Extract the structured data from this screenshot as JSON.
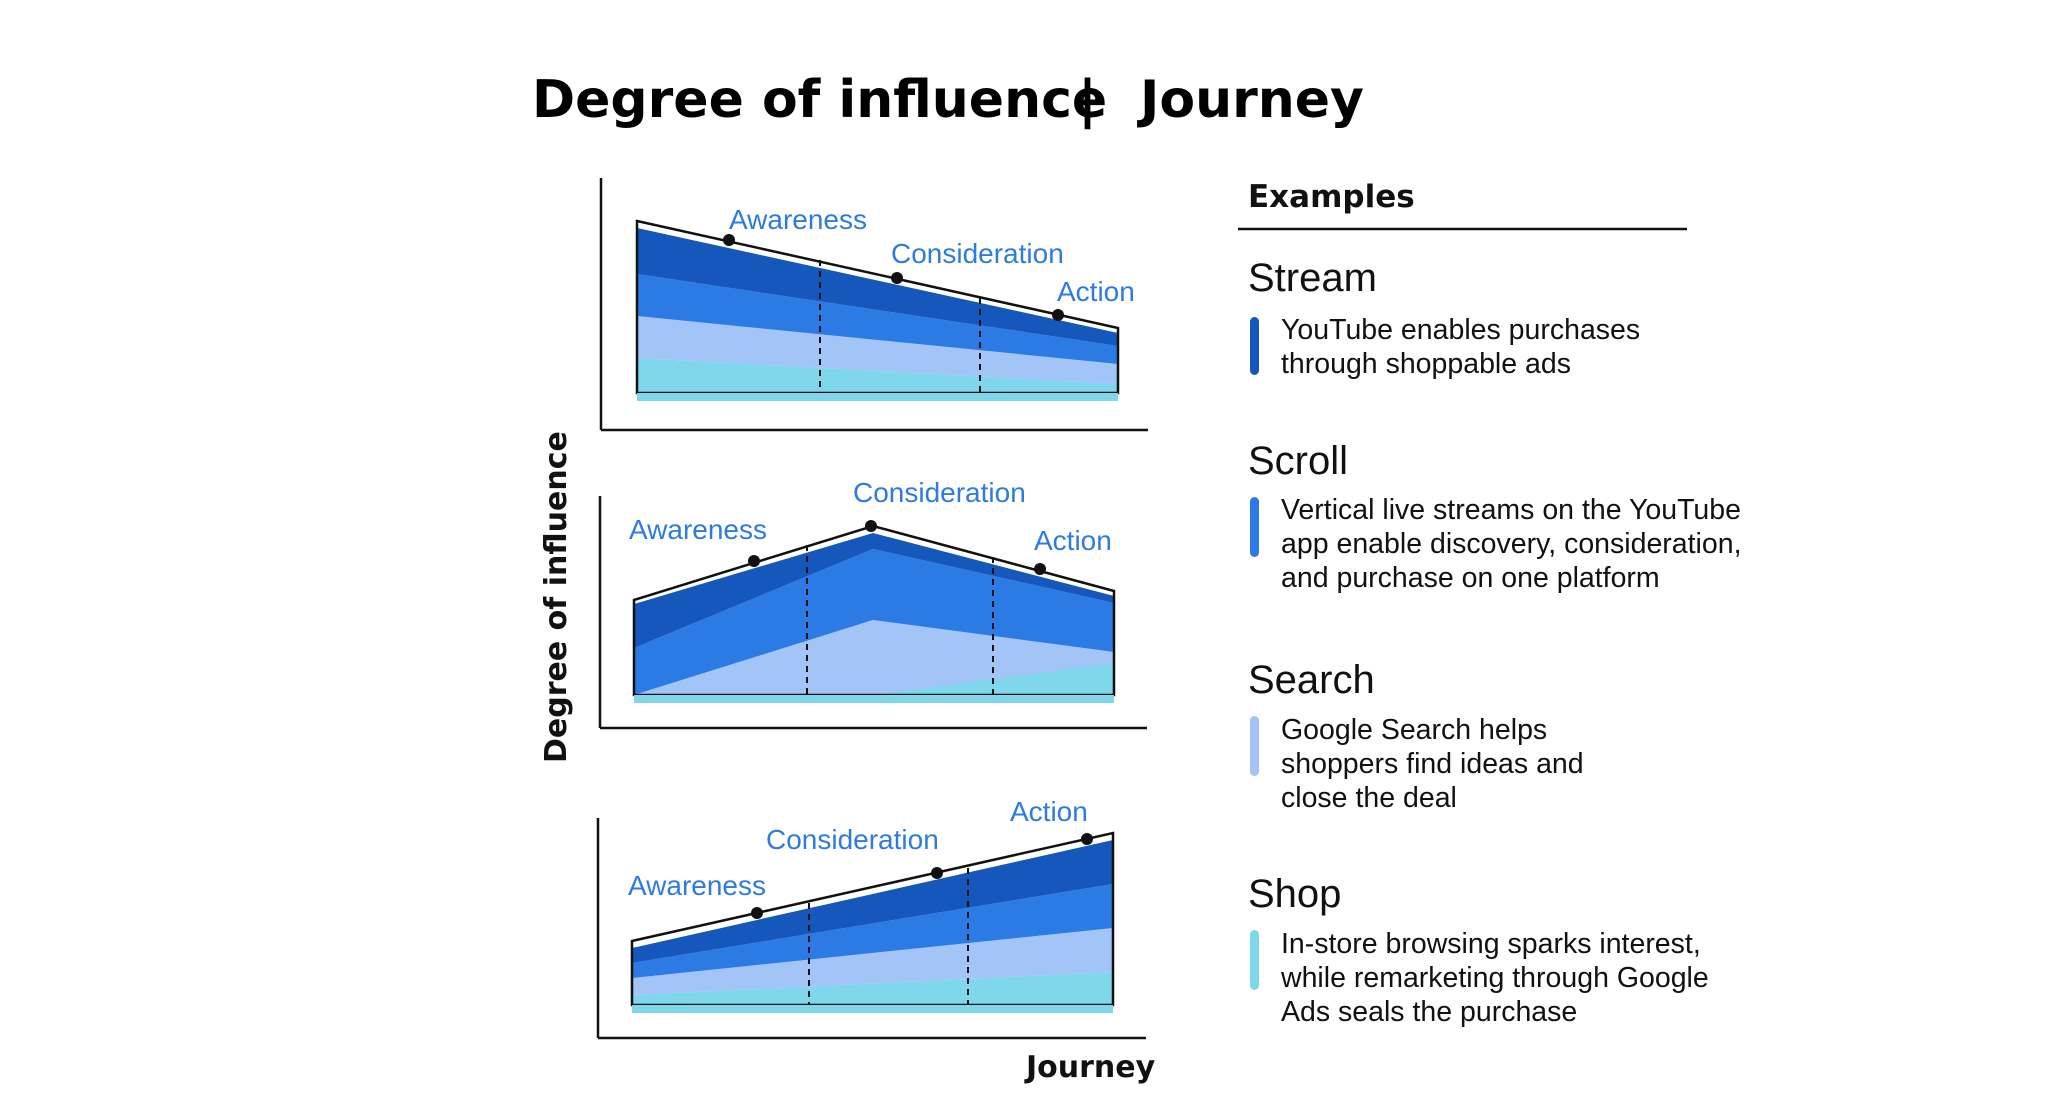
{
  "title": {
    "left": "Degree of influence",
    "separator": "|",
    "right": "Journey"
  },
  "axes": {
    "y_label": "Degree of influence",
    "x_label": "Journey"
  },
  "colors": {
    "band_dark": "#1657bb",
    "band_mid": "#2c7be5",
    "band_light": "#a3c4f6",
    "band_cyan": "#7ed7ea",
    "label_blue": "#2e7be0"
  },
  "diagrams": [
    {
      "name": "stream",
      "stages": [
        "Awareness",
        "Consideration",
        "Action"
      ]
    },
    {
      "name": "scroll",
      "stages": [
        "Awareness",
        "Consideration",
        "Action"
      ]
    },
    {
      "name": "shop",
      "stages": [
        "Awareness",
        "Consideration",
        "Action"
      ]
    }
  ],
  "examples": {
    "heading": "Examples",
    "items": [
      {
        "title": "Stream",
        "color": "#1657bb",
        "lines": [
          "YouTube enables purchases",
          "through shoppable ads"
        ]
      },
      {
        "title": "Scroll",
        "color": "#2c7be5",
        "lines": [
          "Vertical live streams on the YouTube",
          "app enable discovery, consideration,",
          "and purchase on one platform"
        ]
      },
      {
        "title": "Search",
        "color": "#a3c4f6",
        "lines": [
          "Google Search helps",
          "shoppers find ideas and",
          "close the deal"
        ]
      },
      {
        "title": "Shop",
        "color": "#7ed7ea",
        "lines": [
          "In-store browsing sparks interest,",
          "while remarketing through Google",
          "Ads seals the purchase"
        ]
      }
    ]
  }
}
